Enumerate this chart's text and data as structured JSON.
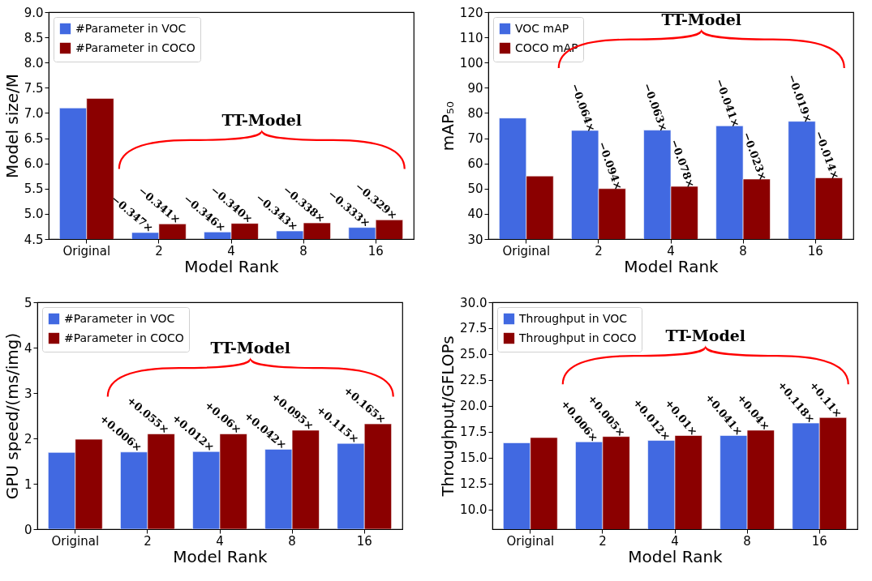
{
  "chart_data": [
    {
      "type": "bar",
      "ylabel": "Model size/M",
      "xlabel": "Model Rank",
      "categories": [
        "Original",
        "2",
        "4",
        "8",
        "16"
      ],
      "ylim": [
        4.5,
        9.0
      ],
      "yticks": [
        {
          "value": 4.5,
          "label": "4.5"
        },
        {
          "value": 5,
          "label": "5.0"
        },
        {
          "value": 5.5,
          "label": "5.5"
        },
        {
          "value": 6,
          "label": "6.0"
        },
        {
          "value": 6.5,
          "label": "6.5"
        },
        {
          "value": 7,
          "label": "7.0"
        },
        {
          "value": 7.5,
          "label": "7.5"
        },
        {
          "value": 8,
          "label": "8.0"
        },
        {
          "value": 8.5,
          "label": "8.5"
        },
        {
          "value": 9,
          "label": "9.0"
        }
      ],
      "legend": "top left",
      "annotations": [
        "TT-Model",
        {
          "text": "−0.347×",
          "x": "2",
          "y": 4.63
        },
        {
          "text": "−0.341×",
          "x": "2",
          "y": 4.8
        },
        {
          "text": "−0.346×",
          "x": "4",
          "y": 4.64
        },
        {
          "text": "−0.340×",
          "x": "4",
          "y": 4.81
        },
        {
          "text": "−0.343×",
          "x": "8",
          "y": 4.66
        },
        {
          "text": "−0.338×",
          "x": "8",
          "y": 4.82
        },
        {
          "text": "−0.333×",
          "x": "16",
          "y": 4.73
        },
        {
          "text": "−0.329×",
          "x": "16",
          "y": 4.88
        }
      ],
      "series": [
        {
          "name": "#Parameter in VOC",
          "color": "#4169e1",
          "values": [
            7.1,
            4.63,
            4.64,
            4.66,
            4.73
          ]
        },
        {
          "name": "#Parameter in COCO",
          "color": "#8b0000",
          "values": [
            7.29,
            4.8,
            4.81,
            4.82,
            4.88
          ]
        }
      ]
    },
    {
      "type": "bar",
      "ylabel": "mAP₅₀",
      "xlabel": "Model Rank",
      "categories": [
        "Original",
        "2",
        "4",
        "8",
        "16"
      ],
      "ylim": [
        30,
        120
      ],
      "yticks": [
        30,
        40,
        50,
        60,
        70,
        80,
        90,
        100,
        110,
        120
      ],
      "legend": "top left",
      "annotations": [
        "TT-Model",
        {
          "text": "−0.064×",
          "x": "2",
          "y": 73.1
        },
        {
          "text": "−0.094×",
          "x": "2",
          "y": 50.0
        },
        {
          "text": "−0.063×",
          "x": "4",
          "y": 73.2
        },
        {
          "text": "−0.078×",
          "x": "4",
          "y": 50.9
        },
        {
          "text": "−0.041×",
          "x": "8",
          "y": 74.9
        },
        {
          "text": "−0.023×",
          "x": "8",
          "y": 53.8
        },
        {
          "text": "−0.019×",
          "x": "16",
          "y": 76.7
        },
        {
          "text": "−0.014×",
          "x": "16",
          "y": 54.3
        }
      ],
      "series": [
        {
          "name": "VOC mAP",
          "color": "#4169e1",
          "values": [
            78.0,
            73.1,
            73.2,
            74.9,
            76.7
          ]
        },
        {
          "name": "COCO mAP",
          "color": "#8b0000",
          "values": [
            55.0,
            50.0,
            50.9,
            53.8,
            54.3
          ]
        }
      ]
    },
    {
      "type": "bar",
      "ylabel": "GPU speed/(ms/img)",
      "xlabel": "Model Rank",
      "categories": [
        "Original",
        "2",
        "4",
        "8",
        "16"
      ],
      "ylim": [
        0,
        5
      ],
      "yticks": [
        0,
        1,
        2,
        3,
        4,
        5
      ],
      "legend": "top left",
      "annotations": [
        "TT-Model",
        {
          "text": "+0.006×",
          "x": "2",
          "y": 1.7
        },
        {
          "text": "+0.055×",
          "x": "2",
          "y": 2.1
        },
        {
          "text": "+0.012×",
          "x": "4",
          "y": 1.71
        },
        {
          "text": "+0.06×",
          "x": "4",
          "y": 2.1
        },
        {
          "text": "+0.042×",
          "x": "8",
          "y": 1.76
        },
        {
          "text": "+0.095×",
          "x": "8",
          "y": 2.18
        },
        {
          "text": "+0.115×",
          "x": "16",
          "y": 1.89
        },
        {
          "text": "+0.165×",
          "x": "16",
          "y": 2.32
        }
      ],
      "series": [
        {
          "name": "#Parameter in VOC",
          "color": "#4169e1",
          "values": [
            1.69,
            1.7,
            1.71,
            1.76,
            1.89
          ]
        },
        {
          "name": "#Parameter in COCO",
          "color": "#8b0000",
          "values": [
            1.98,
            2.1,
            2.1,
            2.18,
            2.32
          ]
        }
      ]
    },
    {
      "type": "bar",
      "ylabel": "Throughput/GFLOPs",
      "xlabel": "Model Rank",
      "categories": [
        "Original",
        "2",
        "4",
        "8",
        "16"
      ],
      "ylim": [
        8.1,
        30
      ],
      "yticks": [
        {
          "value": 10,
          "label": "10.0"
        },
        {
          "value": 12.5,
          "label": "12.5"
        },
        {
          "value": 15,
          "label": "15.0"
        },
        {
          "value": 17.5,
          "label": "17.5"
        },
        {
          "value": 20,
          "label": "20.0"
        },
        {
          "value": 22.5,
          "label": "22.5"
        },
        {
          "value": 25,
          "label": "25.0"
        },
        {
          "value": 27.5,
          "label": "27.5"
        },
        {
          "value": 30,
          "label": "30.0"
        }
      ],
      "legend": "top left",
      "annotations": [
        "TT-Model",
        {
          "text": "+0.006×",
          "x": "2",
          "y": 16.53
        },
        {
          "text": "+0.005×",
          "x": "2",
          "y": 17.04
        },
        {
          "text": "+0.012×",
          "x": "4",
          "y": 16.66
        },
        {
          "text": "+0.01×",
          "x": "4",
          "y": 17.14
        },
        {
          "text": "+0.041×",
          "x": "8",
          "y": 17.14
        },
        {
          "text": "+0.04×",
          "x": "8",
          "y": 17.65
        },
        {
          "text": "+0.118×",
          "x": "16",
          "y": 18.34
        },
        {
          "text": "+0.11×",
          "x": "16",
          "y": 18.87
        }
      ],
      "series": [
        {
          "name": "Throughput in VOC",
          "color": "#4169e1",
          "values": [
            16.43,
            16.53,
            16.66,
            17.14,
            18.34
          ]
        },
        {
          "name": "Throughput in COCO",
          "color": "#8b0000",
          "values": [
            16.94,
            17.04,
            17.14,
            17.65,
            18.87
          ]
        }
      ]
    }
  ]
}
